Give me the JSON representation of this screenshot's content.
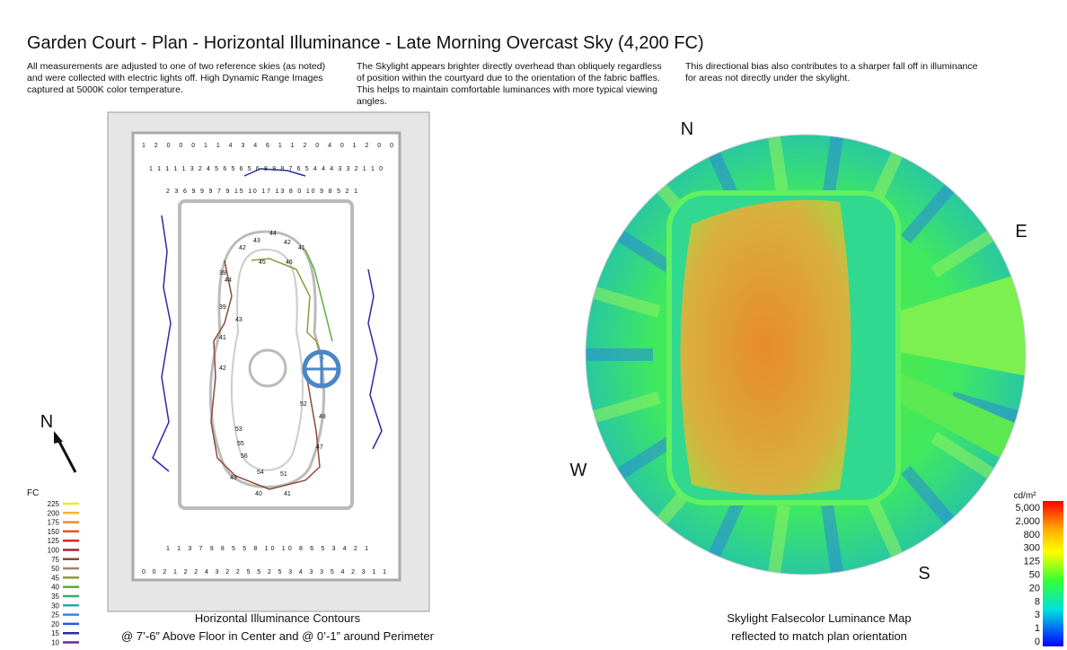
{
  "title": "Garden Court - Plan - Horizontal Illuminance - Late Morning Overcast Sky (4,200 FC)",
  "notes": [
    "All measurements are adjusted to one of two reference skies (as noted) and were collected with electric lights off.  High Dynamic Range Images captured at 5000K color temperature.",
    "The Skylight appears brighter directly overhead than obliquely regardless of position within the courtyard due to the orientation of the fabric baffles.  This helps to maintain comfortable luminances with more typical viewing angles.",
    "This directional bias also contributes to a sharper fall off in illuminance for areas not directly under the skylight."
  ],
  "plan": {
    "north": "N",
    "rows": [
      "1 2 0 0 0 1 1 4 3 4 6 1 1 2 0 4 0 1 2 0 0",
      "1 1 1 1 1 3 2 4 5 6 5 6 5 6 8 9 8 7 6 5 4 4 4 3 3 2 1 1 0",
      "2 3 6 9 9 9 7 9 15 10 17 13 8 0 10 9 8 5 2 1",
      "1 1 3 7 9 8 5 5 8 10 10 8 6 5 3 4 2 1",
      "0 0 2 1 2 2 4 3 2 2 5 5 2 5 3 4 3 3 5 4 2 3 1 1"
    ],
    "inner": [
      "42",
      "43",
      "44",
      "42",
      "41",
      "39",
      "44",
      "45",
      "46",
      "39",
      "43",
      "41",
      "42",
      "52",
      "53",
      "55",
      "56",
      "54",
      "51",
      "48",
      "47",
      "43",
      "40",
      "41"
    ]
  },
  "legend": {
    "unit": "FC",
    "items": [
      {
        "label": "225",
        "color": "#f5e43a"
      },
      {
        "label": "200",
        "color": "#f7b52a"
      },
      {
        "label": "175",
        "color": "#f08a24"
      },
      {
        "label": "150",
        "color": "#e5531f"
      },
      {
        "label": "125",
        "color": "#d42a22"
      },
      {
        "label": "100",
        "color": "#a8232b"
      },
      {
        "label": "75",
        "color": "#8c4a3a"
      },
      {
        "label": "50",
        "color": "#a08a6a"
      },
      {
        "label": "45",
        "color": "#8e9a3a"
      },
      {
        "label": "40",
        "color": "#5aae3a"
      },
      {
        "label": "35",
        "color": "#2eb06a"
      },
      {
        "label": "30",
        "color": "#28a8a8"
      },
      {
        "label": "25",
        "color": "#3a8ad8"
      },
      {
        "label": "20",
        "color": "#2a5ac8"
      },
      {
        "label": "15",
        "color": "#2a2aa8"
      },
      {
        "label": "10",
        "color": "#6a2a9a"
      }
    ]
  },
  "caption_left": [
    "Horizontal Illuminance Contours",
    "@ 7’-6” Above Floor in Center and @ 0’-1” around Perimeter"
  ],
  "map": {
    "compass": {
      "n": "N",
      "e": "E",
      "w": "W",
      "s": "S"
    },
    "unit": "cd/m²",
    "scale": [
      "5,000",
      "2,000",
      "800",
      "300",
      "125",
      "50",
      "20",
      "8",
      "3",
      "1",
      "0"
    ]
  },
  "caption_right": [
    "Skylight Falsecolor Luminance Map",
    "reflected to match plan orientation"
  ]
}
